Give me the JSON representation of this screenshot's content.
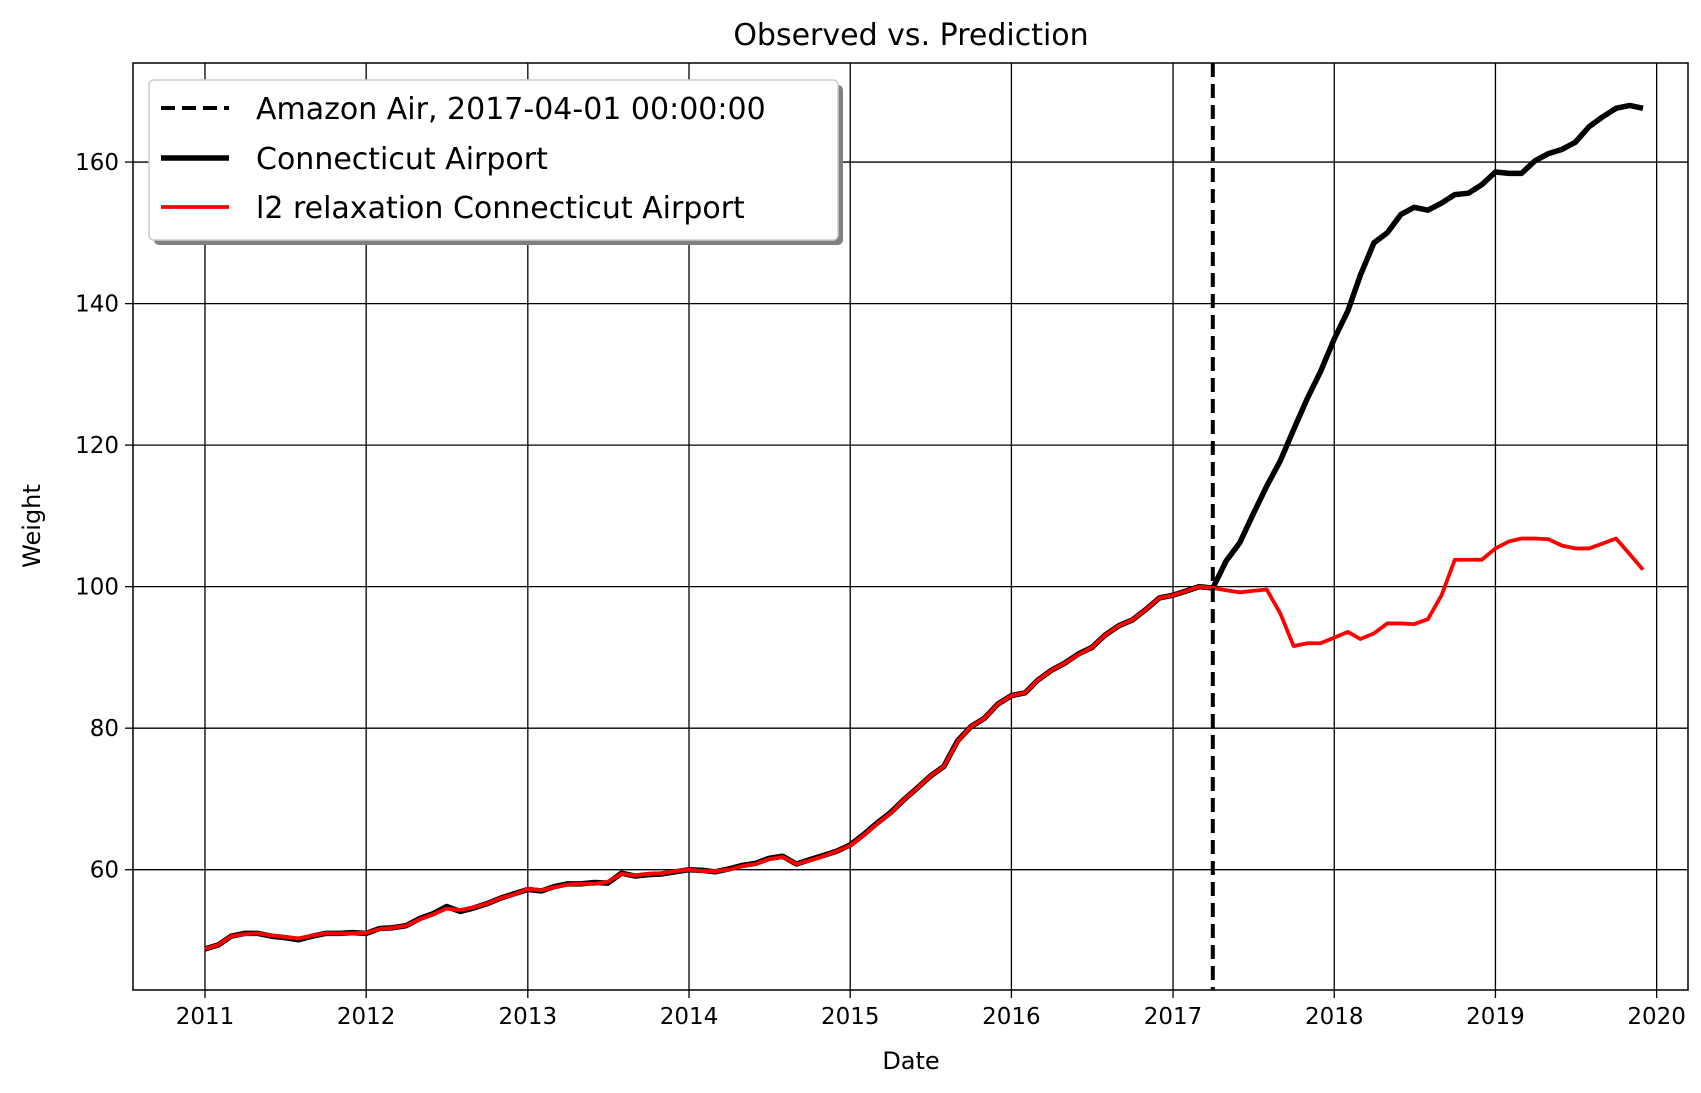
{
  "chart_data": {
    "type": "line",
    "title": "Observed vs. Prediction",
    "xlabel": "Date",
    "ylabel": "Weight",
    "x_axis_type": "date",
    "xlim": [
      "2010-07-22",
      "2020-03-12"
    ],
    "ylim": [
      43,
      174
    ],
    "x_ticks": [
      "2011",
      "2012",
      "2013",
      "2014",
      "2015",
      "2016",
      "2017",
      "2018",
      "2019",
      "2020"
    ],
    "y_ticks": [
      60,
      80,
      100,
      120,
      140,
      160
    ],
    "grid": true,
    "legend_position": "top-left",
    "intervention": {
      "label": "Amazon Air, 2017-04-01 00:00:00",
      "date": "2017-04-01",
      "color": "#000000",
      "style": "dashed"
    },
    "series": [
      {
        "name": "Connecticut Airport",
        "color": "#000000",
        "style": "solid-thick",
        "points": [
          [
            "2011-01-01",
            48.8
          ],
          [
            "2011-02-01",
            49.4
          ],
          [
            "2011-03-01",
            50.6
          ],
          [
            "2011-04-01",
            51.0
          ],
          [
            "2011-05-01",
            51.0
          ],
          [
            "2011-06-01",
            50.6
          ],
          [
            "2011-07-01",
            50.4
          ],
          [
            "2011-08-01",
            50.1
          ],
          [
            "2011-09-01",
            50.6
          ],
          [
            "2011-10-01",
            51.0
          ],
          [
            "2011-11-01",
            51.0
          ],
          [
            "2011-12-01",
            51.1
          ],
          [
            "2012-01-01",
            51.0
          ],
          [
            "2012-02-01",
            51.7
          ],
          [
            "2012-03-01",
            51.8
          ],
          [
            "2012-04-01",
            52.1
          ],
          [
            "2012-05-01",
            53.1
          ],
          [
            "2012-06-01",
            53.8
          ],
          [
            "2012-07-01",
            54.8
          ],
          [
            "2012-08-01",
            54.1
          ],
          [
            "2012-09-01",
            54.6
          ],
          [
            "2012-10-01",
            55.2
          ],
          [
            "2012-11-01",
            56.0
          ],
          [
            "2012-12-01",
            56.6
          ],
          [
            "2013-01-01",
            57.2
          ],
          [
            "2013-02-01",
            57.0
          ],
          [
            "2013-03-01",
            57.6
          ],
          [
            "2013-04-01",
            58.0
          ],
          [
            "2013-05-01",
            58.0
          ],
          [
            "2013-06-01",
            58.2
          ],
          [
            "2013-07-01",
            58.1
          ],
          [
            "2013-08-01",
            59.5
          ],
          [
            "2013-09-01",
            59.1
          ],
          [
            "2013-10-01",
            59.3
          ],
          [
            "2013-11-01",
            59.4
          ],
          [
            "2013-12-01",
            59.7
          ],
          [
            "2014-01-01",
            60.0
          ],
          [
            "2014-02-01",
            59.9
          ],
          [
            "2014-03-01",
            59.7
          ],
          [
            "2014-04-01",
            60.1
          ],
          [
            "2014-05-01",
            60.6
          ],
          [
            "2014-06-01",
            60.9
          ],
          [
            "2014-07-01",
            61.6
          ],
          [
            "2014-08-01",
            61.9
          ],
          [
            "2014-09-01",
            60.8
          ],
          [
            "2014-10-01",
            61.4
          ],
          [
            "2014-11-01",
            62.0
          ],
          [
            "2014-12-01",
            62.6
          ],
          [
            "2015-01-01",
            63.5
          ],
          [
            "2015-02-01",
            65.0
          ],
          [
            "2015-03-01",
            66.5
          ],
          [
            "2015-04-01",
            68.0
          ],
          [
            "2015-05-01",
            69.8
          ],
          [
            "2015-06-01",
            71.5
          ],
          [
            "2015-07-01",
            73.2
          ],
          [
            "2015-08-01",
            74.6
          ],
          [
            "2015-09-01",
            78.2
          ],
          [
            "2015-10-01",
            80.2
          ],
          [
            "2015-11-01",
            81.4
          ],
          [
            "2015-12-01",
            83.4
          ],
          [
            "2016-01-01",
            84.6
          ],
          [
            "2016-02-01",
            85.0
          ],
          [
            "2016-03-01",
            86.8
          ],
          [
            "2016-04-01",
            88.2
          ],
          [
            "2016-05-01",
            89.2
          ],
          [
            "2016-06-01",
            90.5
          ],
          [
            "2016-07-01",
            91.4
          ],
          [
            "2016-08-01",
            93.2
          ],
          [
            "2016-09-01",
            94.5
          ],
          [
            "2016-10-01",
            95.3
          ],
          [
            "2016-11-01",
            96.8
          ],
          [
            "2016-12-01",
            98.4
          ],
          [
            "2017-01-01",
            98.8
          ],
          [
            "2017-02-01",
            99.4
          ],
          [
            "2017-03-01",
            100.0
          ],
          [
            "2017-04-01",
            99.8
          ],
          [
            "2017-05-01",
            103.6
          ],
          [
            "2017-06-01",
            106.2
          ],
          [
            "2017-07-01",
            110.2
          ],
          [
            "2017-08-01",
            114.2
          ],
          [
            "2017-09-01",
            117.8
          ],
          [
            "2017-10-01",
            122.2
          ],
          [
            "2017-11-01",
            126.6
          ],
          [
            "2017-12-01",
            130.4
          ],
          [
            "2018-01-01",
            135.0
          ],
          [
            "2018-02-01",
            139.0
          ],
          [
            "2018-03-01",
            144.0
          ],
          [
            "2018-04-01",
            148.6
          ],
          [
            "2018-05-01",
            150.0
          ],
          [
            "2018-06-01",
            152.6
          ],
          [
            "2018-07-01",
            153.6
          ],
          [
            "2018-08-01",
            153.2
          ],
          [
            "2018-09-01",
            154.2
          ],
          [
            "2018-10-01",
            155.4
          ],
          [
            "2018-11-01",
            155.6
          ],
          [
            "2018-12-01",
            156.8
          ],
          [
            "2019-01-01",
            158.6
          ],
          [
            "2019-02-01",
            158.4
          ],
          [
            "2019-03-01",
            158.4
          ],
          [
            "2019-04-01",
            160.2
          ],
          [
            "2019-05-01",
            161.2
          ],
          [
            "2019-06-01",
            161.8
          ],
          [
            "2019-07-01",
            162.8
          ],
          [
            "2019-08-01",
            165.0
          ],
          [
            "2019-09-01",
            166.4
          ],
          [
            "2019-10-01",
            167.6
          ],
          [
            "2019-11-01",
            168.0
          ],
          [
            "2019-12-01",
            167.6
          ]
        ]
      },
      {
        "name": "l2 relaxation Connecticut Airport",
        "color": "#ff0000",
        "style": "solid",
        "points": [
          [
            "2011-01-01",
            48.8
          ],
          [
            "2011-02-01",
            49.4
          ],
          [
            "2011-03-01",
            50.6
          ],
          [
            "2011-04-01",
            50.9
          ],
          [
            "2011-05-01",
            51.0
          ],
          [
            "2011-06-01",
            50.7
          ],
          [
            "2011-07-01",
            50.5
          ],
          [
            "2011-08-01",
            50.3
          ],
          [
            "2011-09-01",
            50.7
          ],
          [
            "2011-10-01",
            51.0
          ],
          [
            "2011-11-01",
            51.0
          ],
          [
            "2011-12-01",
            51.0
          ],
          [
            "2012-01-01",
            51.1
          ],
          [
            "2012-02-01",
            51.6
          ],
          [
            "2012-03-01",
            51.8
          ],
          [
            "2012-04-01",
            52.1
          ],
          [
            "2012-05-01",
            53.0
          ],
          [
            "2012-06-01",
            53.7
          ],
          [
            "2012-07-01",
            54.5
          ],
          [
            "2012-08-01",
            54.3
          ],
          [
            "2012-09-01",
            54.7
          ],
          [
            "2012-10-01",
            55.2
          ],
          [
            "2012-11-01",
            56.0
          ],
          [
            "2012-12-01",
            56.5
          ],
          [
            "2013-01-01",
            57.3
          ],
          [
            "2013-02-01",
            57.1
          ],
          [
            "2013-03-01",
            57.5
          ],
          [
            "2013-04-01",
            57.9
          ],
          [
            "2013-05-01",
            58.0
          ],
          [
            "2013-06-01",
            58.0
          ],
          [
            "2013-07-01",
            58.3
          ],
          [
            "2013-08-01",
            59.4
          ],
          [
            "2013-09-01",
            59.2
          ],
          [
            "2013-10-01",
            59.4
          ],
          [
            "2013-11-01",
            59.5
          ],
          [
            "2013-12-01",
            59.8
          ],
          [
            "2014-01-01",
            60.0
          ],
          [
            "2014-02-01",
            59.8
          ],
          [
            "2014-03-01",
            59.8
          ],
          [
            "2014-04-01",
            60.0
          ],
          [
            "2014-05-01",
            60.5
          ],
          [
            "2014-06-01",
            60.8
          ],
          [
            "2014-07-01",
            61.5
          ],
          [
            "2014-08-01",
            61.8
          ],
          [
            "2014-09-01",
            60.8
          ],
          [
            "2014-10-01",
            61.3
          ],
          [
            "2014-11-01",
            61.9
          ],
          [
            "2014-12-01",
            62.6
          ],
          [
            "2015-01-01",
            63.4
          ],
          [
            "2015-02-01",
            64.9
          ],
          [
            "2015-03-01",
            66.4
          ],
          [
            "2015-04-01",
            67.9
          ],
          [
            "2015-05-01",
            69.8
          ],
          [
            "2015-06-01",
            71.5
          ],
          [
            "2015-07-01",
            73.2
          ],
          [
            "2015-08-01",
            74.6
          ],
          [
            "2015-09-01",
            78.1
          ],
          [
            "2015-10-01",
            80.2
          ],
          [
            "2015-11-01",
            81.4
          ],
          [
            "2015-12-01",
            83.4
          ],
          [
            "2016-01-01",
            84.6
          ],
          [
            "2016-02-01",
            85.0
          ],
          [
            "2016-03-01",
            86.8
          ],
          [
            "2016-04-01",
            88.2
          ],
          [
            "2016-05-01",
            89.2
          ],
          [
            "2016-06-01",
            90.4
          ],
          [
            "2016-07-01",
            91.4
          ],
          [
            "2016-08-01",
            93.2
          ],
          [
            "2016-09-01",
            94.5
          ],
          [
            "2016-10-01",
            95.3
          ],
          [
            "2016-11-01",
            96.8
          ],
          [
            "2016-12-01",
            98.4
          ],
          [
            "2017-01-01",
            98.8
          ],
          [
            "2017-02-01",
            99.4
          ],
          [
            "2017-03-01",
            100.0
          ],
          [
            "2017-04-01",
            99.8
          ],
          [
            "2017-05-01",
            99.5
          ],
          [
            "2017-06-01",
            99.2
          ],
          [
            "2017-07-01",
            99.4
          ],
          [
            "2017-08-01",
            99.6
          ],
          [
            "2017-09-01",
            96.2
          ],
          [
            "2017-10-01",
            91.6
          ],
          [
            "2017-11-01",
            92.0
          ],
          [
            "2017-12-01",
            92.0
          ],
          [
            "2018-01-01",
            92.8
          ],
          [
            "2018-02-01",
            93.6
          ],
          [
            "2018-03-01",
            92.6
          ],
          [
            "2018-04-01",
            93.4
          ],
          [
            "2018-05-01",
            94.8
          ],
          [
            "2018-06-01",
            94.8
          ],
          [
            "2018-07-01",
            94.7
          ],
          [
            "2018-08-01",
            95.4
          ],
          [
            "2018-09-01",
            98.8
          ],
          [
            "2018-10-01",
            103.8
          ],
          [
            "2018-11-01",
            103.8
          ],
          [
            "2018-12-01",
            103.8
          ],
          [
            "2019-01-01",
            105.4
          ],
          [
            "2019-02-01",
            106.4
          ],
          [
            "2019-03-01",
            106.8
          ],
          [
            "2019-04-01",
            106.8
          ],
          [
            "2019-05-01",
            106.7
          ],
          [
            "2019-06-01",
            105.8
          ],
          [
            "2019-07-01",
            105.4
          ],
          [
            "2019-08-01",
            105.4
          ],
          [
            "2019-09-01",
            106.1
          ],
          [
            "2019-10-01",
            106.8
          ],
          [
            "2019-11-01",
            104.6
          ],
          [
            "2019-12-01",
            102.4
          ]
        ]
      }
    ]
  }
}
